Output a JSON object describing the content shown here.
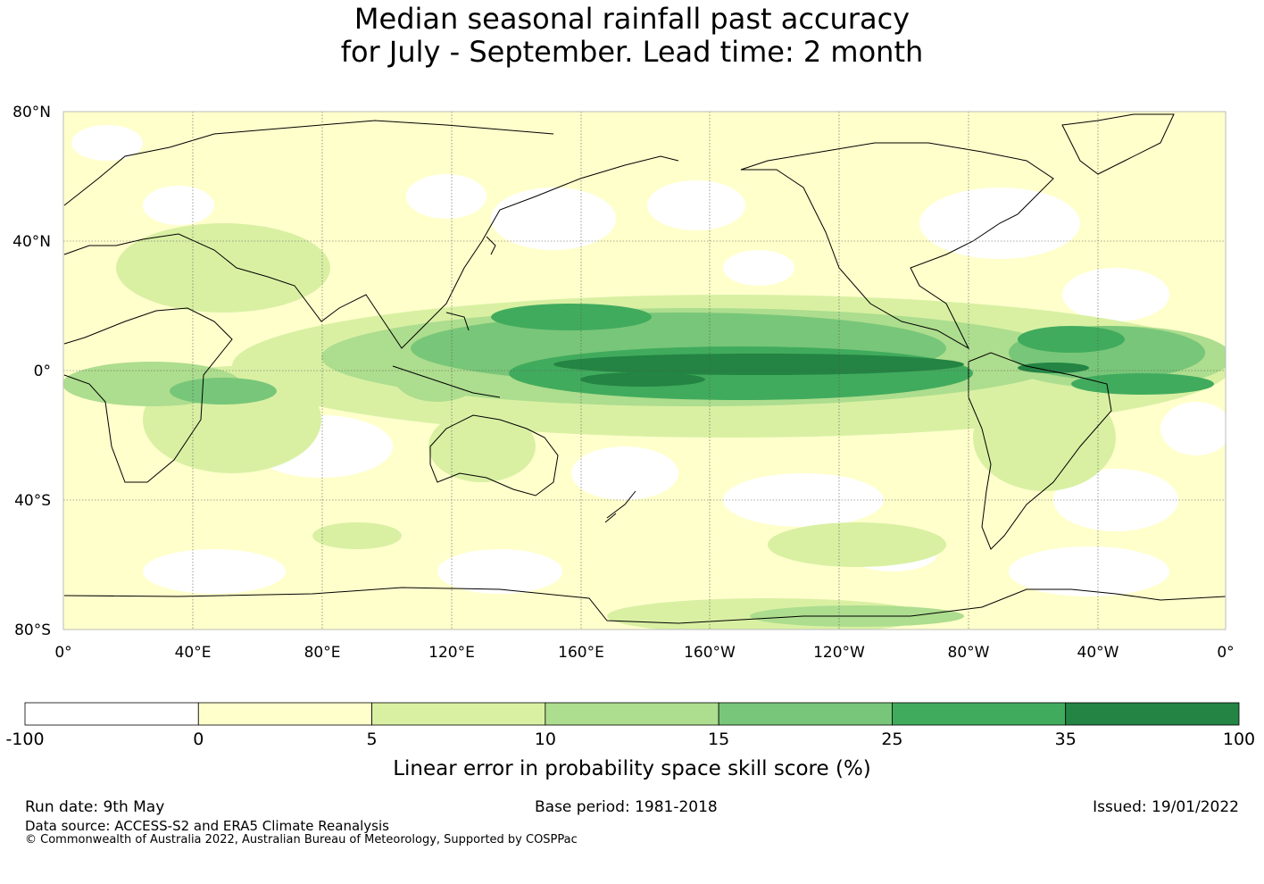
{
  "title": {
    "line1": "Median seasonal rainfall past accuracy",
    "line2": "for July - September. Lead time: 2 month"
  },
  "map": {
    "lat_labels": [
      "80°N",
      "40°N",
      "0°",
      "40°S",
      "80°S"
    ],
    "lon_labels": [
      "0°",
      "40°E",
      "80°E",
      "120°E",
      "160°E",
      "160°W",
      "120°W",
      "80°W",
      "40°W",
      "0°"
    ]
  },
  "colorbar": {
    "ticks": [
      "-100",
      "0",
      "5",
      "10",
      "15",
      "25",
      "35",
      "100"
    ],
    "colors": [
      "#ffffff",
      "#ffffcc",
      "#d9f0a3",
      "#addd8e",
      "#78c679",
      "#41ab5d",
      "#238443"
    ],
    "label": "Linear error in probability space skill score (%)"
  },
  "footer": {
    "run_date": "Run date: 9th May",
    "base_period": "Base period: 1981-2018",
    "issued": "Issued: 19/01/2022",
    "data_source": "Data source: ACCESS-S2 and ERA5 Climate Reanalysis",
    "copyright": "© Commonwealth of Australia 2022, Australian Bureau of Meteorology, Supported by COSPPac"
  }
}
